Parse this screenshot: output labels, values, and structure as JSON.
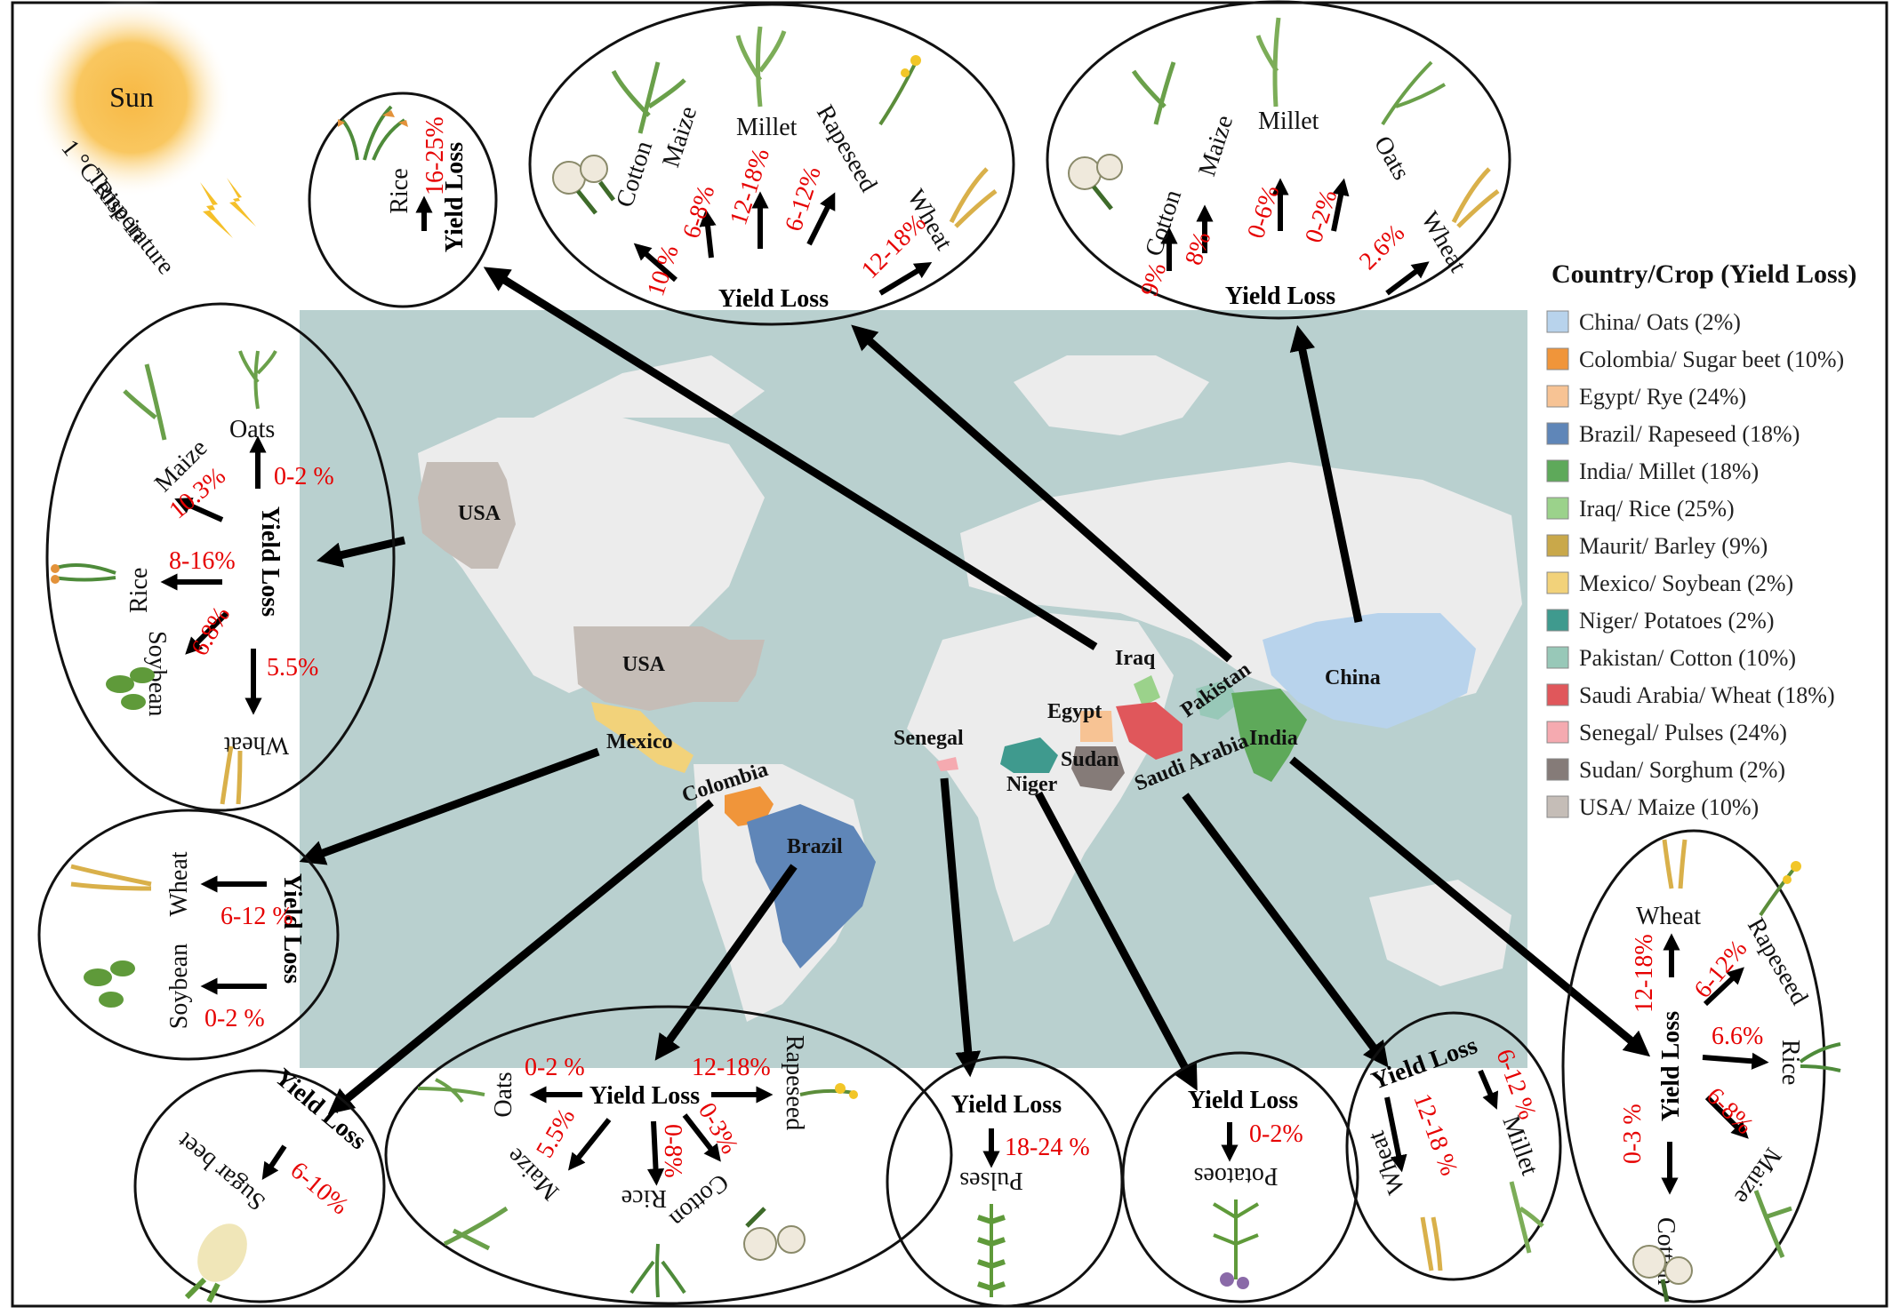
{
  "sun": {
    "label": "Sun",
    "caption": [
      "1 °C Rise in",
      "Temperature"
    ]
  },
  "yield_loss_label": "Yield Loss",
  "countries_on_map": [
    "USA",
    "USA",
    "Mexico",
    "Colombia",
    "Brazil",
    "Senegal",
    "Niger",
    "Sudan",
    "Egypt",
    "Iraq",
    "Saudi Arabia",
    "Pakistan",
    "India",
    "China"
  ],
  "legend": {
    "title": "Country/Crop (Yield Loss)",
    "items": [
      {
        "label": "China/ Oats (2%)",
        "color": "#b8d3ec"
      },
      {
        "label": "Colombia/ Sugar beet (10%)",
        "color": "#f0953a"
      },
      {
        "label": "Egypt/ Rye (24%)",
        "color": "#f7c394"
      },
      {
        "label": "Brazil/ Rapeseed (18%)",
        "color": "#5f86b8"
      },
      {
        "label": "India/ Millet (18%)",
        "color": "#5ea95a"
      },
      {
        "label": "Iraq/ Rice (25%)",
        "color": "#9bd28b"
      },
      {
        "label": "Maurit/ Barley (9%)",
        "color": "#c9a84a"
      },
      {
        "label": "Mexico/ Soybean (2%)",
        "color": "#f2d27a"
      },
      {
        "label": "Niger/ Potatoes (2%)",
        "color": "#3f9a8e"
      },
      {
        "label": "Pakistan/ Cotton (10%)",
        "color": "#98c8b8"
      },
      {
        "label": "Saudi Arabia/ Wheat (18%)",
        "color": "#e0575b"
      },
      {
        "label": "Senegal/ Pulses (24%)",
        "color": "#f5aab0"
      },
      {
        "label": "Sudan/ Sorghum (2%)",
        "color": "#857b78"
      },
      {
        "label": "USA/ Maize (10%)",
        "color": "#c5bdb7"
      }
    ]
  },
  "bubbles": {
    "iraq": {
      "crops": [
        "Rice"
      ],
      "values": [
        "16-25%"
      ]
    },
    "pakistan": {
      "crops": [
        "Cotton",
        "Maize",
        "Millet",
        "Rapeseed",
        "Wheat"
      ],
      "values": [
        "10 %",
        "6-8%",
        "12-18%",
        "6-12%",
        "12-18%"
      ]
    },
    "china": {
      "crops": [
        "Cotton",
        "Maize",
        "Millet",
        "Oats",
        "Wheat"
      ],
      "values": [
        "9%",
        "8%",
        "0-6%",
        "0-2%",
        "2.6%"
      ]
    },
    "usa": {
      "crops": [
        "Oats",
        "Maize",
        "Rice",
        "Soybean",
        "Wheat"
      ],
      "values": [
        "0-2 %",
        "10.3%",
        "8-16%",
        "6.8%",
        "5.5%"
      ]
    },
    "mexico": {
      "crops": [
        "Wheat",
        "Soybean"
      ],
      "values": [
        "6-12 %",
        "0-2 %"
      ]
    },
    "colombia": {
      "crops": [
        "Sugar beet"
      ],
      "values": [
        "6-10%"
      ]
    },
    "brazil": {
      "crops": [
        "Oats",
        "Rapeseed",
        "Maize",
        "Rice",
        "Cotton"
      ],
      "values": [
        "0-2 %",
        "12-18%",
        "5.5%",
        "0-8%",
        "0-3%"
      ]
    },
    "senegal": {
      "crops": [
        "Pulses"
      ],
      "values": [
        "18-24 %"
      ]
    },
    "niger": {
      "crops": [
        "Potatoes"
      ],
      "values": [
        "0-2%"
      ]
    },
    "saudi": {
      "crops": [
        "Wheat",
        "Millet"
      ],
      "values": [
        "12-18 %",
        "6-12 %"
      ]
    },
    "india": {
      "crops": [
        "Wheat",
        "Rapeseed",
        "Rice",
        "Maize",
        "Cotton"
      ],
      "values": [
        "12-18%",
        "6-12%",
        "6.6%",
        "6-8%",
        "0-3 %"
      ]
    }
  }
}
